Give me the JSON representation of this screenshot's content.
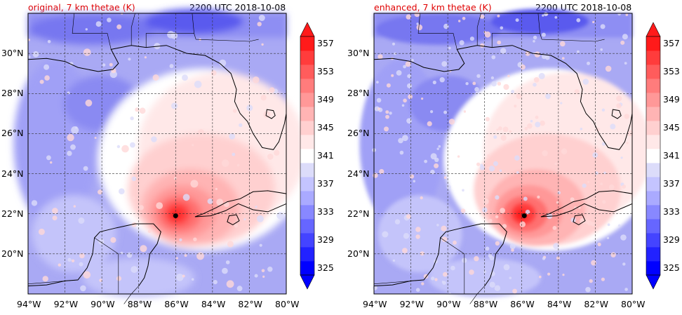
{
  "panels": [
    {
      "title_left": "original, 7 km thetae (K)",
      "title_right": "2200 UTC 2018-10-08"
    },
    {
      "title_left": "enhanced, 7 km thetae (K)",
      "title_right": "2200 UTC 2018-10-08"
    }
  ],
  "map": {
    "lat_labels": [
      "30°N",
      "28°N",
      "26°N",
      "24°N",
      "22°N",
      "20°N"
    ],
    "lon_labels": [
      "94°W",
      "92°W",
      "90°W",
      "88°W",
      "86°W",
      "84°W",
      "82°W",
      "80°W"
    ],
    "lat_range": [
      18,
      32
    ],
    "lon_range": [
      -94,
      -80
    ],
    "storm_center": {
      "lon": -86.0,
      "lat": 21.9
    }
  },
  "colorbar": {
    "labels": [
      "357",
      "353",
      "349",
      "345",
      "341",
      "337",
      "333",
      "329",
      "325"
    ],
    "levels": [
      325,
      327,
      329,
      331,
      333,
      335,
      337,
      339,
      341,
      343,
      345,
      347,
      349,
      351,
      353,
      355,
      357,
      359
    ],
    "colors": [
      "#0000ff",
      "#2222ff",
      "#4444ff",
      "#6666ff",
      "#8888ff",
      "#aaaaff",
      "#c4c4ff",
      "#dcdcfa",
      "#ffffff",
      "#ffe8e8",
      "#ffd0d0",
      "#ffb4b4",
      "#ff9898",
      "#ff7c7c",
      "#ff5c5c",
      "#ff3c3c",
      "#ff1a1a"
    ]
  }
}
